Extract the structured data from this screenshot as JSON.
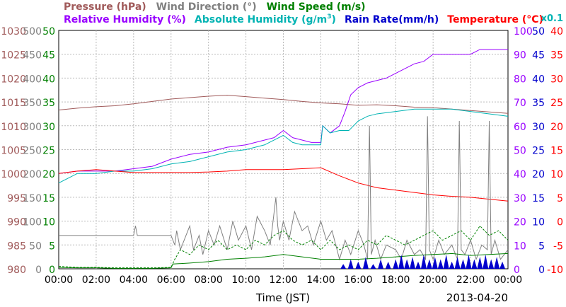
{
  "chart_data": {
    "type": "line",
    "date": "2013-04-20",
    "xlabel": "Time (JST)",
    "x_ticks": [
      "00:00",
      "02:00",
      "04:00",
      "06:00",
      "08:00",
      "10:00",
      "12:00",
      "14:00",
      "16:00",
      "18:00",
      "20:00",
      "22:00",
      "00:00"
    ],
    "x_range_hours": [
      0,
      24
    ],
    "grid": true,
    "legend_row1": [
      {
        "text": "Pressure (hPa)",
        "color": "#a05a5a"
      },
      {
        "text": "Wind Direction (°)",
        "color": "#808080"
      },
      {
        "text": "Wind Speed (m/s)",
        "color": "#008000"
      }
    ],
    "legend_row2": [
      {
        "text": "Relative Humidity (%)",
        "color": "#9900ff"
      },
      {
        "text": "Absolute Humidity (g/m",
        "sup": "3",
        "tail": ")",
        "color": "#00b3b3"
      },
      {
        "text": "Rain Rate(mm/h)",
        "color": "#0000cc"
      },
      {
        "text": "Temperature (°C)",
        "color": "#ff0000"
      }
    ],
    "x01_label": "x0.1",
    "x01_color": "#00b3b3",
    "axes": {
      "pressure": {
        "color": "#a05a5a",
        "range": [
          980,
          1030
        ],
        "ticks": [
          "1030",
          "1025",
          "1020",
          "1015",
          "1010",
          "1005",
          "1000",
          "995",
          "990",
          "985",
          "980"
        ]
      },
      "wind_direction": {
        "color": "#808080",
        "range": [
          0,
          500
        ],
        "ticks": [
          "500",
          "450",
          "400",
          "350",
          "300",
          "250",
          "200",
          "150",
          "100",
          "50",
          "0"
        ]
      },
      "wind_speed": {
        "color": "#008000",
        "range": [
          0,
          50
        ],
        "ticks": [
          "50",
          "45",
          "40",
          "35",
          "30",
          "25",
          "20",
          "15",
          "10",
          "5",
          "0"
        ]
      },
      "humidity": {
        "color": "#9900ff",
        "range": [
          0,
          100
        ],
        "ticks": [
          "100",
          "90",
          "80",
          "70",
          "60",
          "50",
          "40",
          "30",
          "20",
          "10",
          "0"
        ]
      },
      "rain_rate": {
        "color": "#0000cc",
        "range": [
          0,
          50
        ],
        "ticks": [
          "50",
          "45",
          "40",
          "35",
          "30",
          "25",
          "20",
          "15",
          "10",
          "5",
          "0"
        ]
      },
      "temperature": {
        "color": "#ff0000",
        "range": [
          -10,
          40
        ],
        "ticks": [
          "40",
          "35",
          "30",
          "25",
          "20",
          "15",
          "10",
          "5",
          "0",
          "-5",
          "-10"
        ]
      }
    },
    "series": [
      {
        "name": "Pressure (hPa)",
        "axis": "pressure",
        "color": "#a05a5a",
        "x": [
          0,
          1,
          2,
          3,
          4,
          5,
          6,
          7,
          8,
          9,
          10,
          11,
          12,
          13,
          14,
          15,
          16,
          17,
          18,
          19,
          20,
          21,
          22,
          23,
          24
        ],
        "y": [
          1013.3,
          1013.7,
          1014,
          1014.2,
          1014.6,
          1015.1,
          1015.6,
          1015.9,
          1016.2,
          1016.4,
          1016.1,
          1015.8,
          1015.5,
          1015.1,
          1014.8,
          1014.6,
          1014.3,
          1014.4,
          1014.2,
          1013.9,
          1013.8,
          1013.5,
          1013.2,
          1012.9,
          1012.6
        ]
      },
      {
        "name": "Relative Humidity (%)",
        "axis": "humidity",
        "color": "#9900ff",
        "x": [
          0,
          1,
          2,
          3,
          4,
          5,
          6,
          7,
          8,
          9,
          10,
          11,
          11.5,
          12,
          12.5,
          13,
          13.5,
          14,
          14.1,
          14.5,
          15,
          15.3,
          15.6,
          16,
          16.5,
          17,
          17.5,
          18,
          18.5,
          19,
          19.5,
          20,
          21,
          22,
          22.5,
          23,
          24
        ],
        "y": [
          40,
          41,
          41,
          41,
          42,
          43,
          46,
          48,
          49,
          51,
          52,
          54,
          55,
          58,
          55,
          54,
          53,
          53,
          60,
          57,
          60,
          66,
          73,
          76,
          78,
          79,
          80,
          82,
          84,
          86,
          87,
          90,
          90,
          90,
          92,
          92,
          92
        ]
      },
      {
        "name": "Absolute Humidity (g/m3)",
        "axis": "humidity",
        "color": "#00b3b3",
        "x": [
          0,
          1,
          2,
          3,
          4,
          5,
          6,
          7,
          8,
          9,
          10,
          11,
          11.5,
          12,
          12.5,
          13,
          13.5,
          14,
          14.1,
          14.5,
          15,
          15.5,
          16,
          16.5,
          17,
          18,
          19,
          20,
          21,
          22,
          23,
          24
        ],
        "y": [
          36,
          40,
          40,
          41,
          41,
          42,
          44,
          45,
          47,
          49,
          50,
          52,
          54,
          56,
          53,
          52,
          52,
          52,
          60,
          57,
          58,
          58,
          62,
          64,
          65,
          66,
          67,
          67,
          67,
          66,
          65,
          64
        ]
      },
      {
        "name": "Temperature (°C)",
        "axis": "temperature",
        "color": "#ff0000",
        "x": [
          0,
          1,
          2,
          3,
          4,
          5,
          6,
          7,
          8,
          9,
          10,
          11,
          12,
          13,
          14,
          15,
          16,
          17,
          18,
          19,
          20,
          21,
          22,
          23,
          24
        ],
        "y": [
          10,
          10.5,
          10.8,
          10.5,
          10.2,
          10.2,
          10.2,
          10.2,
          10.3,
          10.5,
          10.8,
          10.8,
          10.8,
          11,
          11.2,
          9.5,
          8,
          7,
          6.5,
          6,
          5.5,
          5.2,
          5,
          4.6,
          4.2
        ]
      },
      {
        "name": "Wind Direction (°)",
        "axis": "wind_direction",
        "color": "#808080",
        "x": [
          0,
          4,
          4.1,
          4.2,
          4.3,
          6,
          6.2,
          6.3,
          6.5,
          6.7,
          7,
          7.2,
          7.5,
          7.7,
          8,
          8.3,
          8.6,
          9,
          9.3,
          9.6,
          10,
          10.3,
          10.6,
          11,
          11.3,
          11.6,
          11.7,
          11.8,
          12,
          12.3,
          12.6,
          13,
          13.3,
          13.6,
          14,
          14.3,
          14.6,
          15,
          15.3,
          15.6,
          16,
          16.3,
          16.5,
          16.6,
          16.7,
          16.9,
          17.2,
          17.5,
          18,
          18.3,
          18.6,
          19,
          19.3,
          19.6,
          19.7,
          19.8,
          20,
          20.3,
          20.6,
          21,
          21.3,
          21.4,
          21.5,
          21.7,
          22,
          22.3,
          22.6,
          22.9,
          23,
          23.1,
          23.3,
          23.6,
          24
        ],
        "y": [
          70,
          70,
          90,
          70,
          70,
          70,
          50,
          80,
          40,
          60,
          90,
          40,
          70,
          30,
          80,
          50,
          90,
          40,
          100,
          60,
          90,
          40,
          110,
          80,
          50,
          150,
          90,
          60,
          100,
          60,
          120,
          80,
          90,
          50,
          100,
          60,
          80,
          20,
          60,
          30,
          80,
          50,
          20,
          300,
          30,
          60,
          20,
          50,
          40,
          20,
          60,
          30,
          40,
          20,
          320,
          40,
          20,
          60,
          30,
          50,
          20,
          310,
          40,
          30,
          60,
          20,
          50,
          40,
          310,
          30,
          60,
          20,
          40
        ]
      },
      {
        "name": "Wind Speed (m/s)",
        "axis": "wind_speed",
        "color": "#008000",
        "x": [
          0,
          1,
          2,
          3,
          4,
          5,
          6,
          6.1,
          7,
          8,
          9,
          10,
          11,
          12,
          13,
          14,
          15,
          16,
          17,
          18,
          19,
          20,
          21,
          22,
          23,
          24
        ],
        "y": [
          0.3,
          0.2,
          0.2,
          0.1,
          0.1,
          0.1,
          0.2,
          1,
          1.2,
          1.5,
          2,
          2.2,
          2.5,
          3,
          2.5,
          2,
          2,
          2,
          2.2,
          2.5,
          2.8,
          3,
          3.2,
          2.8,
          3,
          3.2
        ]
      },
      {
        "name": "Wind Speed gust (m/s)",
        "axis": "wind_speed",
        "color": "#008000",
        "x": [
          0,
          1,
          2,
          3,
          4,
          5,
          6,
          6.2,
          6.5,
          7,
          7.5,
          8,
          8.5,
          9,
          9.5,
          10,
          10.5,
          11,
          11.5,
          12,
          12.5,
          13,
          13.5,
          14,
          14.5,
          15,
          15.5,
          16,
          16.5,
          17,
          17.5,
          18,
          18.5,
          19,
          19.5,
          20,
          20.5,
          21,
          21.5,
          22,
          22.5,
          23,
          23.5,
          24
        ],
        "y": [
          0.5,
          0.3,
          0.3,
          0.2,
          0.2,
          0.2,
          0.3,
          2,
          4,
          3,
          5,
          4,
          6,
          4,
          5,
          4,
          6,
          5,
          7,
          8,
          6,
          5,
          6,
          4,
          6,
          4,
          5,
          4,
          6,
          5,
          7,
          6,
          5,
          6,
          7,
          8,
          6,
          7,
          8,
          6,
          9,
          7,
          8,
          6
        ]
      },
      {
        "name": "Rain Rate(mm/h)",
        "axis": "rain_rate",
        "color": "#0000cc",
        "spikes": [
          15.2,
          15.6,
          16,
          16.4,
          16.8,
          17.2,
          17.6,
          18,
          18.3,
          18.6,
          18.9,
          19.2,
          19.5,
          19.8,
          20.1,
          20.4,
          20.7,
          21,
          21.3,
          21.6,
          21.9,
          22.2,
          22.5,
          22.8,
          23.1,
          23.4,
          23.7
        ],
        "heights": [
          1,
          2,
          1.5,
          2.5,
          1,
          2,
          1.5,
          2,
          3,
          2,
          2.5,
          1.5,
          3,
          2,
          2.5,
          2,
          3,
          1.5,
          2.5,
          2,
          3,
          2,
          2.5,
          3,
          2,
          2.5,
          1.5
        ]
      }
    ]
  }
}
